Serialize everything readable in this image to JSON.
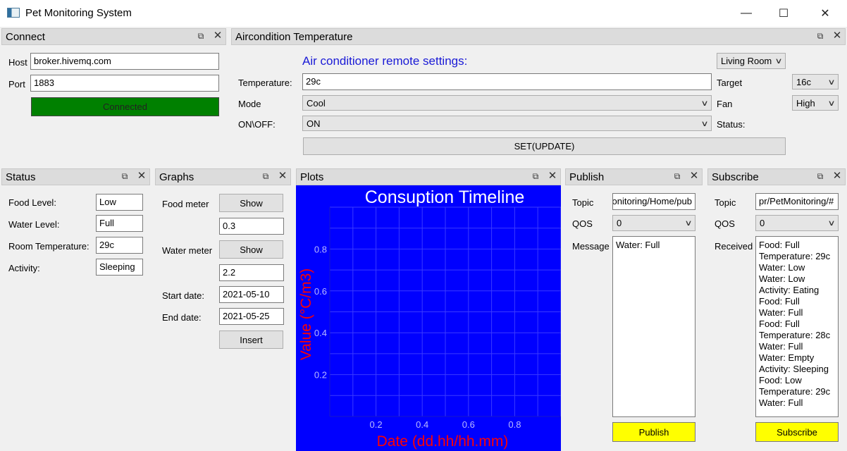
{
  "window": {
    "title": "Pet Monitoring System",
    "minimize": "—",
    "maximize": "☐",
    "close": "✕"
  },
  "dock_icons": {
    "float": "⧉",
    "close": "✕"
  },
  "connect": {
    "title": "Connect",
    "host_label": "Host",
    "host_value": "broker.hivemq.com",
    "port_label": "Port",
    "port_value": "1883",
    "connect_button": "Connected",
    "connect_color": "#008000"
  },
  "aircon": {
    "title": "Aircondition Temperature",
    "heading": "Air conditioner remote settings:",
    "room_select": "Living Room",
    "temperature_label": "Temperature:",
    "temperature_value": "29c",
    "mode_label": "Mode",
    "mode_value": "Cool",
    "onoff_label": "ON\\OFF:",
    "onoff_value": "ON",
    "target_label": "Target",
    "target_value": "16c",
    "fan_label": "Fan",
    "fan_value": "High",
    "status_label": "Status:",
    "set_button": "SET(UPDATE)"
  },
  "status": {
    "title": "Status",
    "food_label": "Food Level:",
    "food_value": "Low",
    "water_label": "Water Level:",
    "water_value": "Full",
    "room_temp_label": "Room Temperature:",
    "room_temp_value": "29c",
    "activity_label": "Activity:",
    "activity_value": "Sleeping"
  },
  "graphs": {
    "title": "Graphs",
    "food_meter_label": "Food meter",
    "show_label": "Show",
    "food_meter_value": "0.3",
    "water_meter_label": "Water meter",
    "water_meter_value": "2.2",
    "start_label": "Start date:",
    "start_value": "2021-05-10",
    "end_label": "End date:",
    "end_value": "2021-05-25",
    "insert_button": "Insert"
  },
  "plots": {
    "title": "Plots"
  },
  "chart_data": {
    "type": "line",
    "title": "Consuption Timeline",
    "xlabel": "Date (dd.hh/hh.mm)",
    "ylabel": "Value (°C/m3)",
    "xlim": [
      0,
      1
    ],
    "ylim": [
      0,
      1
    ],
    "xticks": [
      "0.2",
      "0.4",
      "0.6",
      "0.8"
    ],
    "yticks": [
      "0.2",
      "0.4",
      "0.6",
      "0.8"
    ],
    "series": [],
    "grid": true,
    "colors": {
      "background": "#0000ff",
      "text": "#ff0000",
      "title": "#ffffff"
    }
  },
  "publish": {
    "title": "Publish",
    "topic_label": "Topic",
    "topic_value": "onitoring/Home/pub",
    "qos_label": "QOS",
    "qos_value": "0",
    "message_label": "Message",
    "message_value": "Water: Full",
    "publish_button": "Publish"
  },
  "subscribe": {
    "title": "Subscribe",
    "topic_label": "Topic",
    "topic_value": "pr/PetMonitoring/#",
    "qos_label": "QOS",
    "qos_value": "0",
    "received_label": "Received",
    "received_lines": [
      "Food: Full",
      "Temperature: 29c",
      "Water: Low",
      "Water: Low",
      "Activity: Eating",
      "Food: Full",
      "Water: Full",
      "Food: Full",
      "Temperature: 28c",
      "Water: Full",
      "Water: Empty",
      "Activity: Sleeping",
      "Food: Low",
      "Temperature: 29c",
      "Water: Full"
    ],
    "subscribe_button": "Subscribe"
  }
}
